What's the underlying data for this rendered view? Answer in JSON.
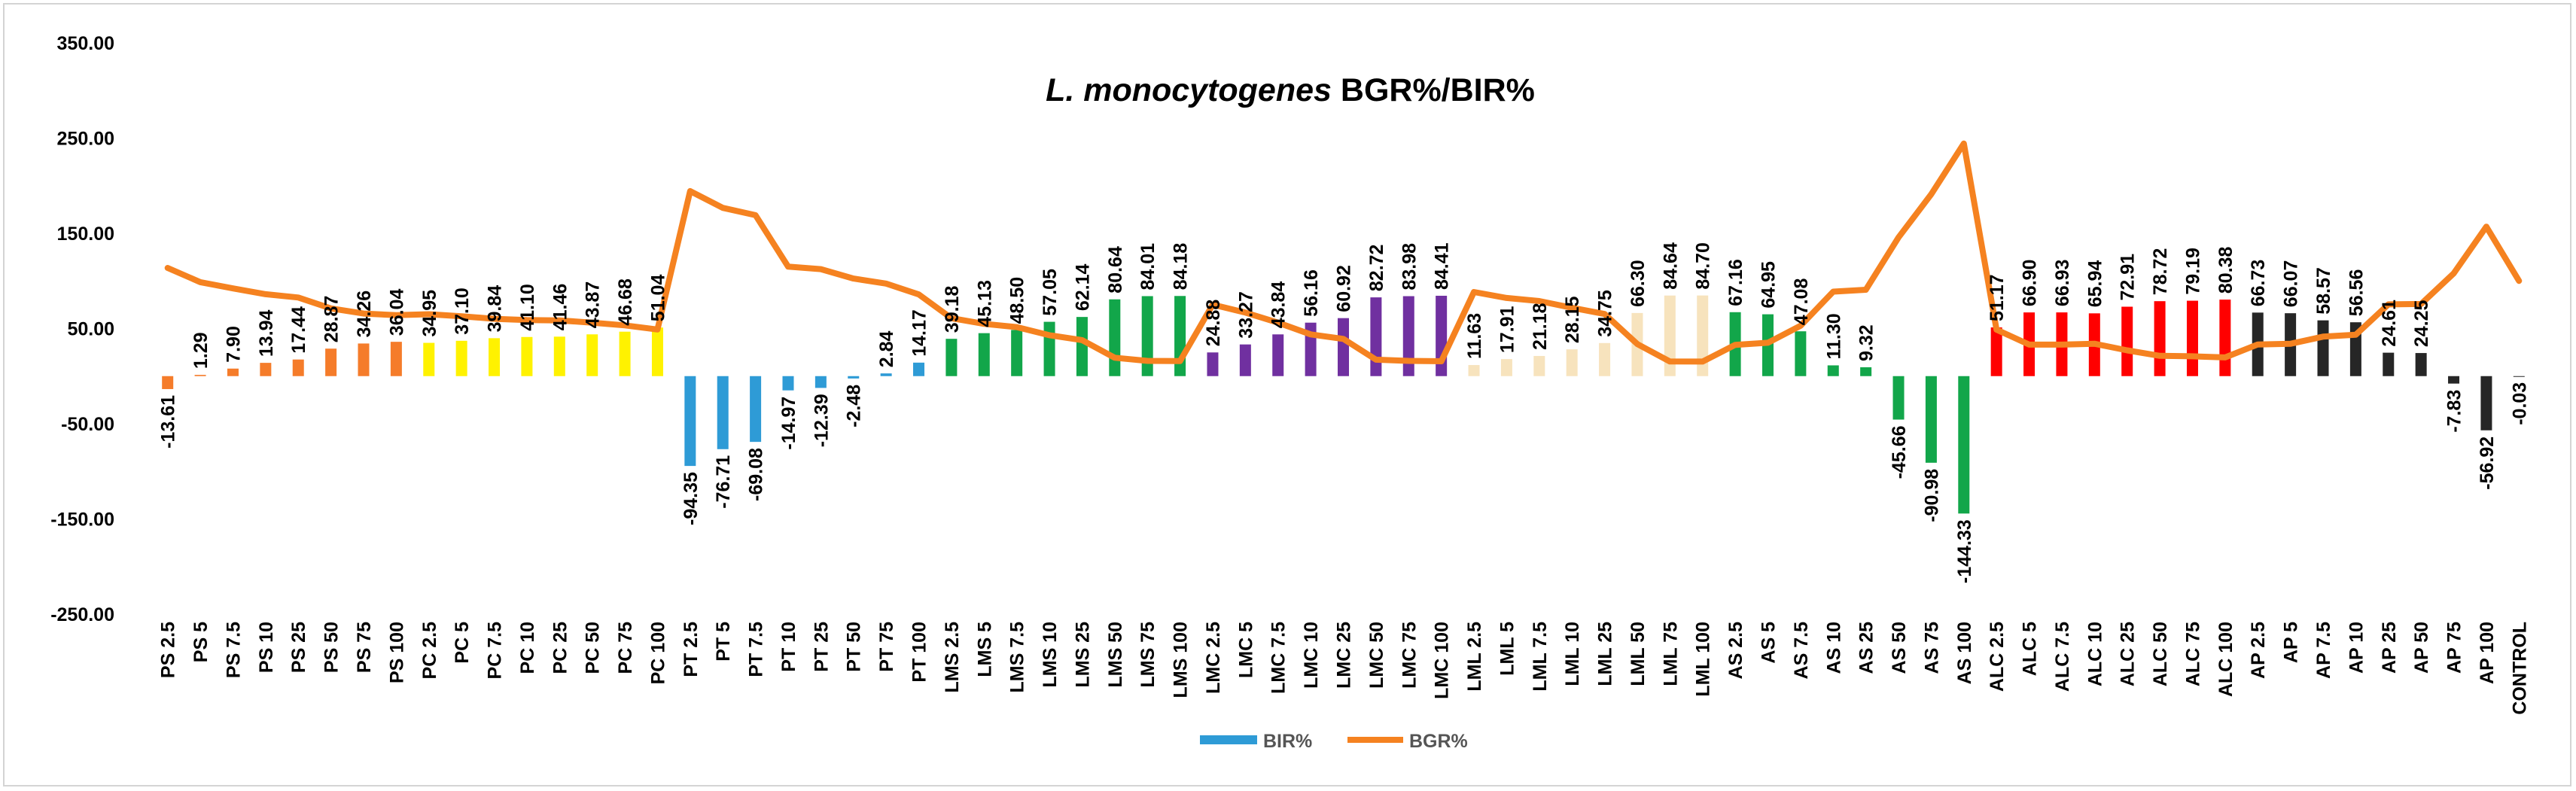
{
  "chart_data": {
    "type": "bar",
    "title_italic": "L. monocytogenes",
    "title_rest": " BGR%/BIR%",
    "ylim": [
      -250,
      350
    ],
    "yticks": [
      "350.00",
      "250.00",
      "150.00",
      "50.00",
      "-50.00",
      "-150.00",
      "-250.00"
    ],
    "grid": false,
    "legend_position": "bottom",
    "categories": [
      "PS 2.5",
      "PS 5",
      "PS 7.5",
      "PS 10",
      "PS 25",
      "PS 50",
      "PS 75",
      "PS 100",
      "PC 2.5",
      "PC 5",
      "PC 7.5",
      "PC 10",
      "PC 25",
      "PC 50",
      "PC 75",
      "PC 100",
      "PT 2.5",
      "PT 5",
      "PT 7.5",
      "PT 10",
      "PT 25",
      "PT 50",
      "PT 75",
      "PT 100",
      "LMS 2.5",
      "LMS 5",
      "LMS 7.5",
      "LMS 10",
      "LMS 25",
      "LMS 50",
      "LMS 75",
      "LMS 100",
      "LMC 2.5",
      "LMC 5",
      "LMC 7.5",
      "LMC 10",
      "LMC 25",
      "LMC 50",
      "LMC 75",
      "LMC 100",
      "LML 2.5",
      "LML 5",
      "LML 7.5",
      "LML 10",
      "LML 25",
      "LML 50",
      "LML 75",
      "LML 100",
      "AS 2.5",
      "AS 5",
      "AS 7.5",
      "AS 10",
      "AS 25",
      "AS 50",
      "AS 75",
      "AS 100",
      "ALC 2.5",
      "ALC 5",
      "ALC 7.5",
      "ALC 10",
      "ALC 25",
      "ALC 50",
      "ALC 75",
      "ALC 100",
      "AP 2.5",
      "AP 5",
      "AP 7.5",
      "AP 10",
      "AP 25",
      "AP 50",
      "AP 75",
      "AP 100",
      "CONTROL"
    ],
    "series": [
      {
        "name": "BIR%",
        "type": "bar",
        "legend_color": "#2e9bd6",
        "values": [
          -13.61,
          1.29,
          7.9,
          13.94,
          17.44,
          28.87,
          34.26,
          36.04,
          34.95,
          37.1,
          39.84,
          41.1,
          41.46,
          43.87,
          46.68,
          51.04,
          -94.35,
          -76.71,
          -69.08,
          -14.97,
          -12.39,
          -2.48,
          2.84,
          14.17,
          39.18,
          45.13,
          48.5,
          57.05,
          62.14,
          80.64,
          84.01,
          84.18,
          24.88,
          33.27,
          43.84,
          56.16,
          60.92,
          82.72,
          83.98,
          84.41,
          11.63,
          17.91,
          21.18,
          28.15,
          34.75,
          66.3,
          84.64,
          84.7,
          67.16,
          64.95,
          47.08,
          11.3,
          9.32,
          -45.66,
          -90.98,
          -144.33,
          51.17,
          66.9,
          66.93,
          65.94,
          72.91,
          78.72,
          79.19,
          80.38,
          66.73,
          66.07,
          58.57,
          56.56,
          24.61,
          24.25,
          -7.83,
          -56.92,
          -0.03
        ],
        "labels": [
          "-13.61",
          "1.29",
          "7.90",
          "13.94",
          "17.44",
          "28.87",
          "34.26",
          "36.04",
          "34.95",
          "37.10",
          "39.84",
          "41.10",
          "41.46",
          "43.87",
          "46.68",
          "51.04",
          "-94.35",
          "-76.71",
          "-69.08",
          "-14.97",
          "-12.39",
          "-2.48",
          "2.84",
          "14.17",
          "39.18",
          "45.13",
          "48.50",
          "57.05",
          "62.14",
          "80.64",
          "84.01",
          "84.18",
          "24.88",
          "33.27",
          "43.84",
          "56.16",
          "60.92",
          "82.72",
          "83.98",
          "84.41",
          "11.63",
          "17.91",
          "21.18",
          "28.15",
          "34.75",
          "66.30",
          "84.64",
          "84.70",
          "67.16",
          "64.95",
          "47.08",
          "11.30",
          "9.32",
          "-45.66",
          "-90.98",
          "-144.33",
          "51.17",
          "66.90",
          "66.93",
          "65.94",
          "72.91",
          "78.72",
          "79.19",
          "80.38",
          "66.73",
          "66.07",
          "58.57",
          "56.56",
          "24.61",
          "24.25",
          "-7.83",
          "-56.92",
          "-0.03"
        ],
        "group_colors": {
          "PS": "#f57c2a",
          "PC": "#fff200",
          "PT": "#2e9bd6",
          "LMS": "#12a64a",
          "LMC": "#7030a0",
          "LML": "#f7e3bd",
          "AS": "#12a64a",
          "ALC": "#ff0000",
          "AP": "#262626",
          "CONTROL": "#262626"
        }
      },
      {
        "name": "BGR%",
        "type": "line",
        "color": "#f58220",
        "values": [
          113.61,
          98.71,
          92.1,
          86.06,
          82.56,
          71.13,
          65.74,
          63.96,
          65.05,
          62.9,
          60.16,
          58.9,
          58.54,
          56.13,
          53.32,
          48.96,
          194.35,
          176.71,
          169.08,
          114.97,
          112.39,
          102.48,
          97.16,
          85.83,
          60.82,
          54.87,
          51.5,
          42.95,
          37.86,
          19.36,
          15.99,
          15.82,
          75.12,
          66.73,
          56.16,
          43.84,
          39.08,
          17.28,
          16.02,
          15.59,
          88.37,
          82.09,
          78.82,
          71.85,
          65.25,
          33.7,
          15.36,
          15.3,
          32.84,
          35.05,
          52.92,
          88.7,
          90.68,
          145.66,
          190.98,
          244.33,
          48.83,
          33.1,
          33.07,
          34.06,
          27.09,
          21.28,
          20.81,
          19.62,
          33.27,
          33.93,
          41.43,
          43.44,
          75.39,
          75.75,
          107.83,
          156.92,
          100.03
        ]
      }
    ]
  }
}
